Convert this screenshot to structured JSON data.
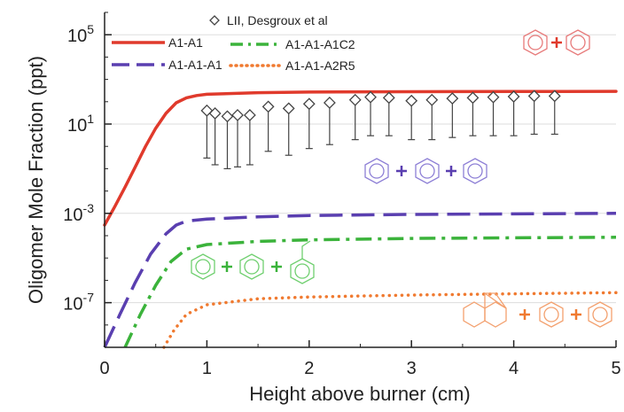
{
  "chart_data": {
    "type": "line",
    "xlabel": "Height above burner (cm)",
    "ylabel": "Oligomer Mole Fraction (ppt)",
    "xlim": [
      0,
      5
    ],
    "ylim": [
      1e-09,
      1000000.0
    ],
    "yscale": "log",
    "x_ticks": [
      0,
      1,
      2,
      3,
      4,
      5
    ],
    "x_tick_labels": [
      "0",
      "1",
      "2",
      "3",
      "4",
      "5"
    ],
    "y_ticks": [
      1e-07,
      0.001,
      10,
      100000
    ],
    "y_tick_labels": [
      {
        "base": "10",
        "exp": "-7"
      },
      {
        "base": "10",
        "exp": "-3"
      },
      {
        "base": "10",
        "exp": "1"
      },
      {
        "base": "10",
        "exp": "5"
      }
    ],
    "legend_position": "top-left",
    "series": [
      {
        "name": "A1-A1",
        "color": "#e03a2c",
        "style": "solid",
        "points": [
          [
            0,
            0.0003
          ],
          [
            0.1,
            0.002
          ],
          [
            0.2,
            0.015
          ],
          [
            0.3,
            0.12
          ],
          [
            0.4,
            1.0
          ],
          [
            0.5,
            6.5
          ],
          [
            0.6,
            30
          ],
          [
            0.7,
            90
          ],
          [
            0.8,
            150
          ],
          [
            0.9,
            190
          ],
          [
            1.0,
            215
          ],
          [
            1.5,
            255
          ],
          [
            2,
            270
          ],
          [
            3,
            280
          ],
          [
            4,
            285
          ],
          [
            5,
            290
          ]
        ]
      },
      {
        "name": "A1-A1-A1",
        "color": "#5a3fb0",
        "style": "dashed",
        "points": [
          [
            0,
            1e-09
          ],
          [
            0.15,
            3e-08
          ],
          [
            0.3,
            8e-07
          ],
          [
            0.45,
            1.5e-05
          ],
          [
            0.6,
            0.00012
          ],
          [
            0.7,
            0.0003
          ],
          [
            0.8,
            0.00045
          ],
          [
            1,
            0.00055
          ],
          [
            1.5,
            0.0007
          ],
          [
            2,
            0.0008
          ],
          [
            3,
            0.0009
          ],
          [
            4,
            0.00095
          ],
          [
            5,
            0.001
          ]
        ]
      },
      {
        "name": "A1-A1-A1C2",
        "color": "#3bb33b",
        "style": "dashdot",
        "points": [
          [
            0.2,
            1e-09
          ],
          [
            0.35,
            3e-08
          ],
          [
            0.5,
            6e-07
          ],
          [
            0.65,
            7e-06
          ],
          [
            0.8,
            2.5e-05
          ],
          [
            1,
            4e-05
          ],
          [
            1.5,
            5.5e-05
          ],
          [
            2,
            6.5e-05
          ],
          [
            3,
            7.5e-05
          ],
          [
            4,
            8e-05
          ],
          [
            5,
            8.5e-05
          ]
        ]
      },
      {
        "name": "A1-A1-A2R5",
        "color": "#f07a30",
        "style": "dotted",
        "points": [
          [
            0.58,
            1e-09
          ],
          [
            0.68,
            6e-09
          ],
          [
            0.8,
            3e-08
          ],
          [
            1,
            8e-08
          ],
          [
            1.5,
            1.5e-07
          ],
          [
            2,
            1.8e-07
          ],
          [
            3,
            2.2e-07
          ],
          [
            4,
            2.5e-07
          ],
          [
            5,
            2.8e-07
          ]
        ]
      }
    ],
    "scatter": {
      "name": "LII, Desgroux et al",
      "color": "#444444",
      "marker": "diamond",
      "points": [
        [
          1.0,
          40
        ],
        [
          1.08,
          30
        ],
        [
          1.2,
          22
        ],
        [
          1.3,
          25
        ],
        [
          1.42,
          25
        ],
        [
          1.6,
          60
        ],
        [
          1.8,
          50
        ],
        [
          2.0,
          80
        ],
        [
          2.2,
          90
        ],
        [
          2.45,
          120
        ],
        [
          2.6,
          160
        ],
        [
          2.78,
          150
        ],
        [
          3.0,
          110
        ],
        [
          3.2,
          120
        ],
        [
          3.4,
          140
        ],
        [
          3.6,
          150
        ],
        [
          3.8,
          160
        ],
        [
          4.0,
          170
        ],
        [
          4.2,
          180
        ],
        [
          4.4,
          180
        ]
      ],
      "error_low": [
        0.3,
        0.15,
        0.1,
        0.12,
        0.15,
        0.6,
        0.4,
        0.8,
        1.2,
        2,
        3,
        3,
        2,
        2,
        2.5,
        3,
        3,
        3,
        3.5,
        3.5
      ]
    }
  }
}
